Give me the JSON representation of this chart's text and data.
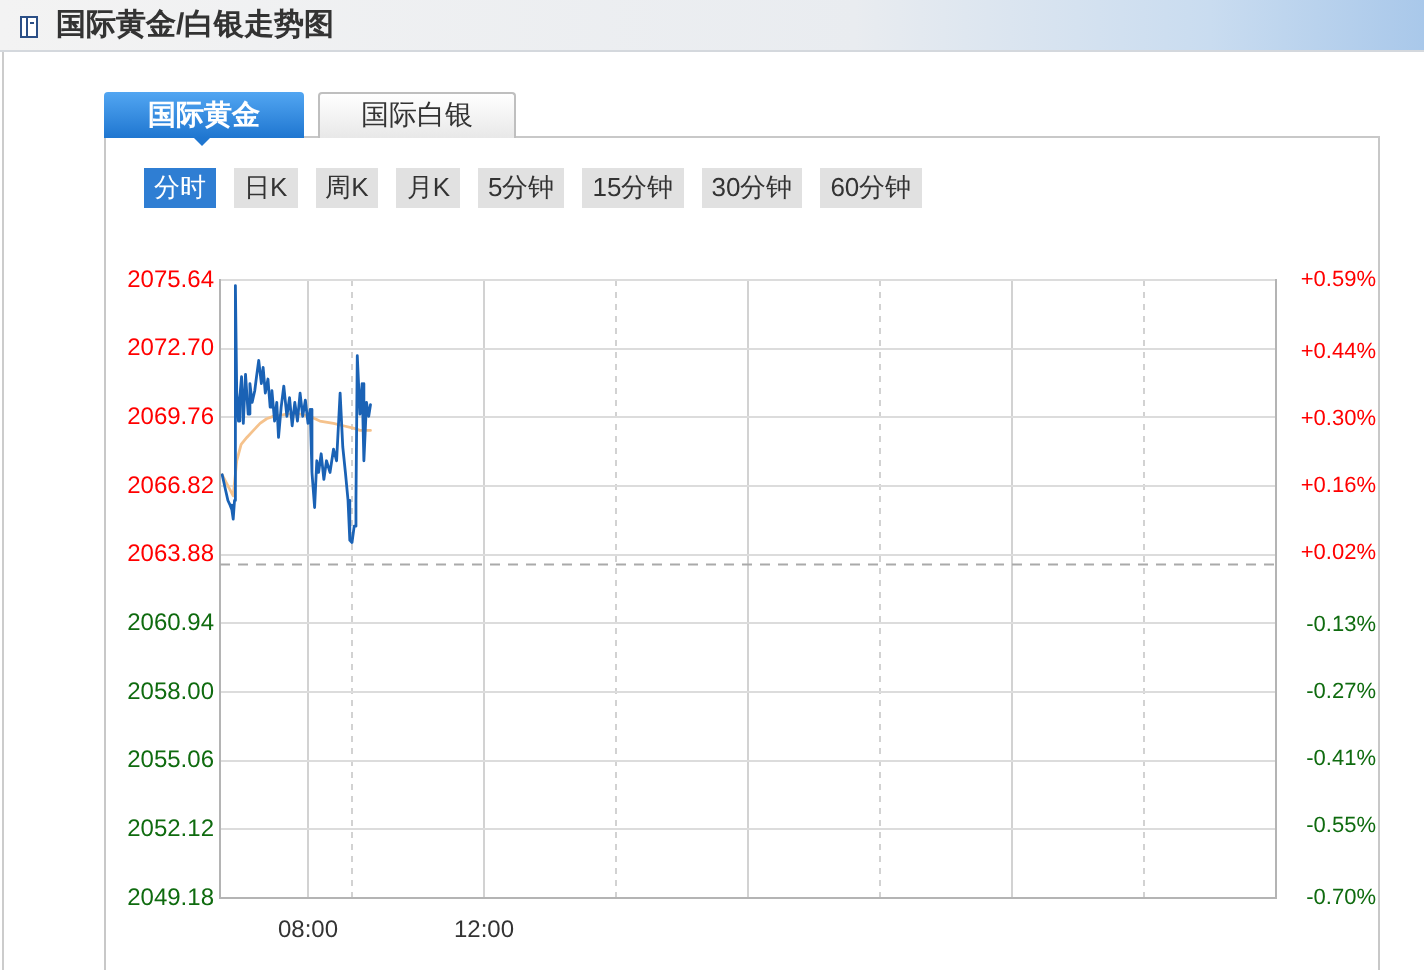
{
  "chart_data": {
    "type": "line",
    "title": "国际黄金/白银走势图",
    "annotations": [
      "国际黄金",
      "国际白银",
      "分时",
      "日K",
      "周K",
      "月K",
      "5分钟",
      "15分钟",
      "30分钟",
      "60分钟"
    ],
    "series": [
      {
        "color": "#1a62b5",
        "x": [
          6.05,
          6.12,
          6.18,
          6.23,
          6.27,
          6.3,
          6.33,
          6.35,
          6.38,
          6.42,
          6.45,
          6.49,
          6.53,
          6.58,
          6.64,
          6.68,
          6.73,
          6.79,
          6.83,
          6.88,
          6.94,
          6.98,
          7.03,
          7.09,
          7.14,
          7.18,
          7.24,
          7.29,
          7.33,
          7.39,
          7.45,
          7.52,
          7.58,
          7.64,
          7.7,
          7.76,
          7.82,
          7.88,
          7.94,
          8.0,
          8.05,
          8.09,
          8.15,
          8.2,
          8.24,
          8.3,
          8.36,
          8.42,
          8.5,
          8.58,
          8.65,
          8.73,
          8.79,
          8.85,
          8.91,
          8.95,
          9.0,
          9.05,
          9.09,
          9.12,
          9.18,
          9.23,
          9.27,
          9.33,
          9.38,
          9.42
        ],
        "values": [
          2067.3,
          2066.7,
          2066.2,
          2066.0,
          2065.8,
          2065.4,
          2066.2,
          2075.4,
          2070.8,
          2069.6,
          2070.6,
          2071.5,
          2069.5,
          2071.6,
          2069.9,
          2071.2,
          2070.4,
          2070.9,
          2071.5,
          2072.2,
          2071.2,
          2071.9,
          2070.8,
          2071.4,
          2070.2,
          2070.9,
          2069.6,
          2070.4,
          2068.9,
          2070.2,
          2071.1,
          2069.8,
          2070.6,
          2069.4,
          2070.4,
          2069.6,
          2070.8,
          2069.8,
          2070.5,
          2069.5,
          2070.1,
          2067.4,
          2065.9,
          2067.9,
          2067.4,
          2068.2,
          2067.1,
          2067.9,
          2067.4,
          2068.4,
          2067.9,
          2070.8,
          2068.5,
          2067.4,
          2066.2,
          2064.5,
          2064.4,
          2065.1,
          2066.2,
          2072.4,
          2069.9,
          2071.2,
          2067.9,
          2070.4,
          2069.8,
          2070.3
        ]
      },
      {
        "color": "#f5c28c",
        "x": [
          6.05,
          6.3,
          6.38,
          6.48,
          6.61,
          6.76,
          6.91,
          7.06,
          7.21,
          7.52,
          7.82,
          8.05,
          8.27,
          8.58,
          8.8,
          9.03,
          9.18,
          9.42
        ],
        "values": [
          2067.3,
          2066.4,
          2067.9,
          2068.6,
          2068.9,
          2069.2,
          2069.5,
          2069.7,
          2069.8,
          2069.9,
          2069.9,
          2069.8,
          2069.6,
          2069.5,
          2069.4,
          2069.3,
          2069.2,
          2069.2
        ]
      }
    ],
    "xlim": [
      6,
      30
    ],
    "xticks": [
      {
        "value": 8,
        "label": "08:00"
      },
      {
        "value": 9,
        "label": null
      },
      {
        "value": 12,
        "label": "12:00"
      },
      {
        "value": 15,
        "label": null
      },
      {
        "value": 18,
        "label": null
      },
      {
        "value": 21,
        "label": null
      },
      {
        "value": 24,
        "label": null
      },
      {
        "value": 27,
        "label": null
      }
    ],
    "ylim": [
      2049.18,
      2075.64
    ],
    "yticks": [
      {
        "value": 2049.18,
        "label": "2049.18"
      },
      {
        "value": 2052.12,
        "label": "2052.12"
      },
      {
        "value": 2055.06,
        "label": "2055.06"
      },
      {
        "value": 2058,
        "label": "2058.00"
      },
      {
        "value": 2060.94,
        "label": "2060.94"
      },
      {
        "value": 2063.88,
        "label": "2063.88"
      },
      {
        "value": 2066.82,
        "label": "2066.82"
      },
      {
        "value": 2069.76,
        "label": "2069.76"
      },
      {
        "value": 2072.7,
        "label": "2072.70"
      },
      {
        "value": 2075.64,
        "label": "2075.64"
      }
    ],
    "y2lim": [
      -0.7,
      0.59
    ],
    "y2ticks": [
      {
        "value": -0.7,
        "label": "-0.70%"
      },
      {
        "value": -0.55,
        "label": "-0.55%"
      },
      {
        "value": -0.41,
        "label": "-0.41%"
      },
      {
        "value": -0.27,
        "label": "-0.27%"
      },
      {
        "value": -0.13,
        "label": "-0.13%"
      },
      {
        "value": 0.02,
        "label": "+0.02%"
      },
      {
        "value": 0.16,
        "label": "+0.16%"
      },
      {
        "value": 0.3,
        "label": "+0.30%"
      },
      {
        "value": 0.44,
        "label": "+0.44%"
      },
      {
        "value": 0.59,
        "label": "+0.59%"
      }
    ],
    "ref_lines": [
      {
        "axis": "y",
        "value": 2063.5,
        "color": "#aaaaaa",
        "line_style": "dashed"
      }
    ],
    "grid": true
  }
}
